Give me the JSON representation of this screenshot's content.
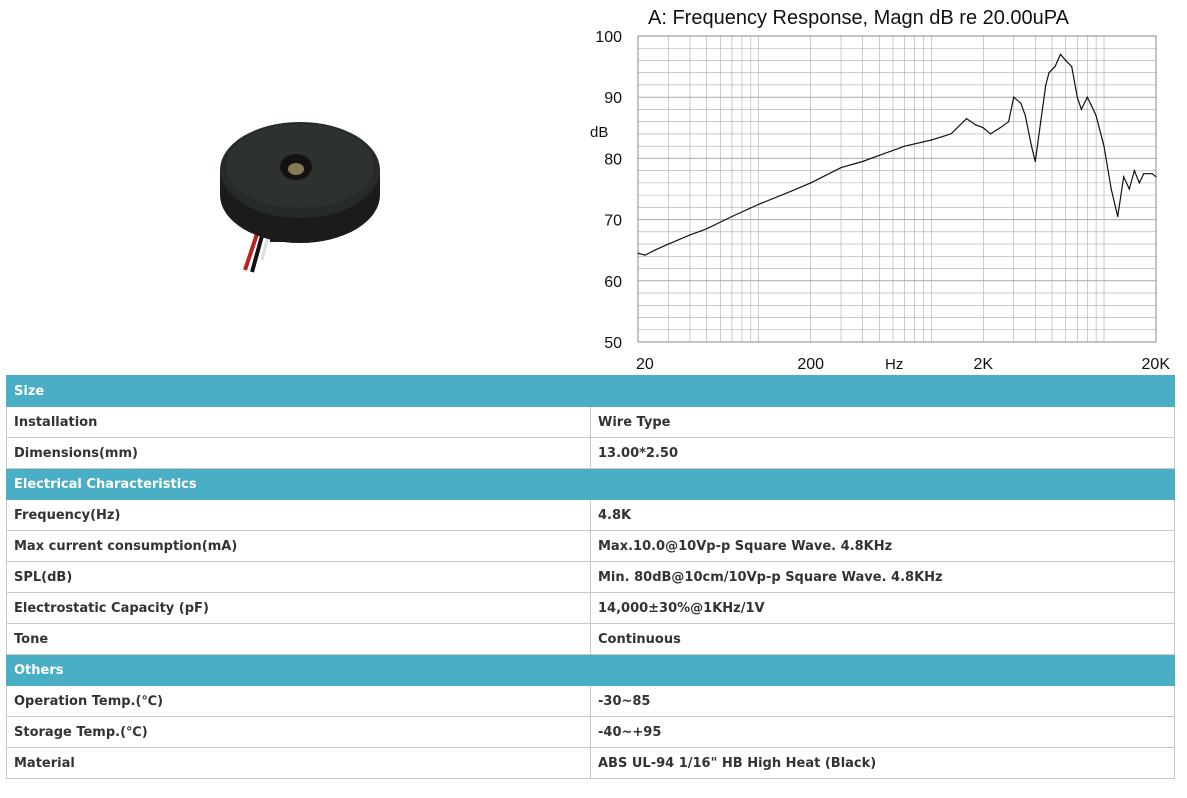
{
  "colors": {
    "section_header_bg": "#4aaec4",
    "chart_line": "#111111",
    "grid": "#aaaaaa"
  },
  "product_image": {
    "icon": "piezo-buzzer-disc-image"
  },
  "chart_data": {
    "type": "line",
    "title": "A: Frequency Response, Magn dB re 20.00uPA",
    "xlabel": "Hz",
    "ylabel": "dB",
    "x_scale": "log",
    "xlim": [
      20,
      20000
    ],
    "ylim": [
      50,
      100
    ],
    "x_ticks": [
      "20",
      "200",
      "2K",
      "20K"
    ],
    "y_ticks": [
      "100",
      "90",
      "80",
      "70",
      "60",
      "50"
    ],
    "grid": true,
    "series": [
      {
        "x": [
          20,
          22,
          25,
          30,
          40,
          50,
          70,
          100,
          150,
          200,
          300,
          400,
          500,
          700,
          1000,
          1300,
          1600,
          1800,
          2000,
          2200,
          2500,
          2800,
          3000,
          3300,
          3500,
          3800,
          4000,
          4300,
          4600,
          4800,
          5200,
          5600,
          6000,
          6500,
          7000,
          7400,
          8000,
          8500,
          9000,
          10000,
          11000,
          12000,
          13000,
          14000,
          15000,
          16000,
          17000,
          18000,
          19000,
          20000
        ],
        "y": [
          64.5,
          64.2,
          65,
          66,
          67.5,
          68.5,
          70.5,
          72.5,
          74.5,
          76,
          78.5,
          79.5,
          80.5,
          82,
          83,
          84,
          86.5,
          85.5,
          85,
          84,
          85,
          86,
          90,
          89,
          87,
          82,
          79.5,
          86,
          92,
          94,
          95,
          97,
          96,
          95,
          90,
          88,
          90,
          88.5,
          87,
          82,
          75,
          70.5,
          77,
          75,
          78,
          76,
          77.5,
          77.5,
          77.5,
          77
        ]
      }
    ]
  },
  "specs": [
    {
      "type": "section",
      "label": "Size"
    },
    {
      "type": "row",
      "key": "Installation",
      "value": "Wire Type"
    },
    {
      "type": "row",
      "key": "Dimensions(mm)",
      "value": "13.00*2.50"
    },
    {
      "type": "section",
      "label": "Electrical Characteristics"
    },
    {
      "type": "row",
      "key": "Frequency(Hz)",
      "value": "4.8K"
    },
    {
      "type": "row",
      "key": "Max current consumption(mA)",
      "value": "Max.10.0@10Vp-p Square Wave. 4.8KHz"
    },
    {
      "type": "row",
      "key": "SPL(dB)",
      "value": "Min. 80dB@10cm/10Vp-p Square Wave. 4.8KHz"
    },
    {
      "type": "row",
      "key": "Electrostatic Capacity (pF)",
      "value": "14,000±30%@1KHz/1V"
    },
    {
      "type": "row",
      "key": "Tone",
      "value": "Continuous"
    },
    {
      "type": "section",
      "label": "Others"
    },
    {
      "type": "row",
      "key": "Operation Temp.(℃)",
      "value": "-30~85"
    },
    {
      "type": "row",
      "key": "Storage Temp.(℃)",
      "value": "-40~+95"
    },
    {
      "type": "row",
      "key": "Material",
      "value": "ABS UL-94 1/16\" HB High Heat (Black)"
    }
  ]
}
